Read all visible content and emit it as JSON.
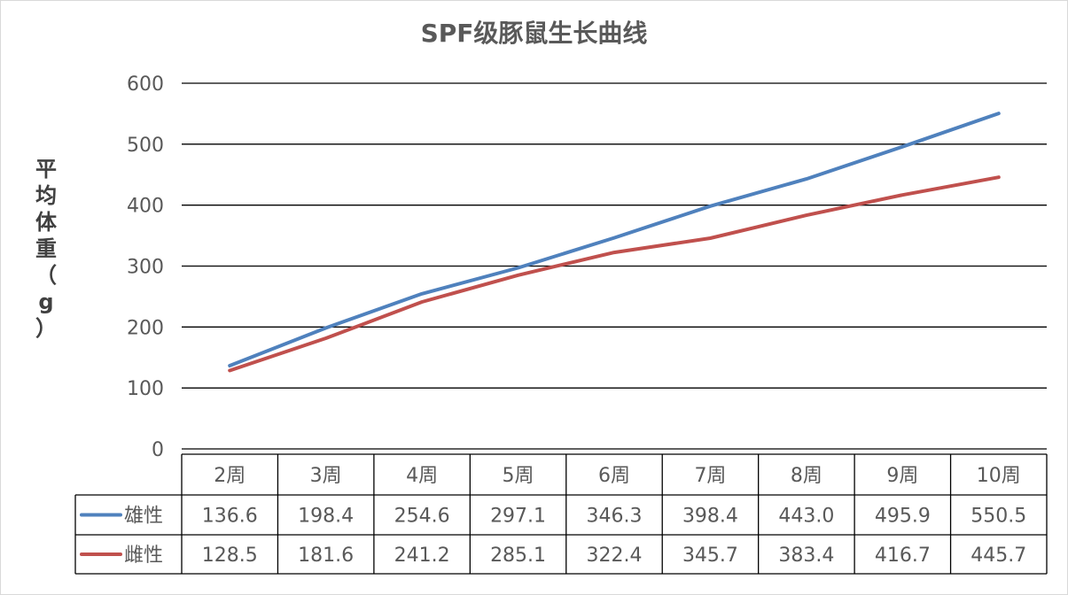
{
  "chart_data": {
    "type": "line",
    "title": "SPF级豚鼠生长曲线",
    "ylabel": "平均体重（g）",
    "xlabel": "",
    "categories": [
      "2周",
      "3周",
      "4周",
      "5周",
      "6周",
      "7周",
      "8周",
      "9周",
      "10周"
    ],
    "ylim": [
      0,
      600
    ],
    "yticks": [
      "0",
      "100",
      "200",
      "300",
      "400",
      "500",
      "600"
    ],
    "grid": true,
    "legend": "data-table",
    "series": [
      {
        "name": "雄性",
        "color": "#4f81bd",
        "values": [
          136.6,
          198.4,
          254.6,
          297.1,
          346.3,
          398.4,
          443.0,
          495.9,
          550.5
        ]
      },
      {
        "name": "雌性",
        "color": "#c0504d",
        "values": [
          128.5,
          181.6,
          241.2,
          285.1,
          322.4,
          345.7,
          383.4,
          416.7,
          445.7
        ]
      }
    ]
  }
}
